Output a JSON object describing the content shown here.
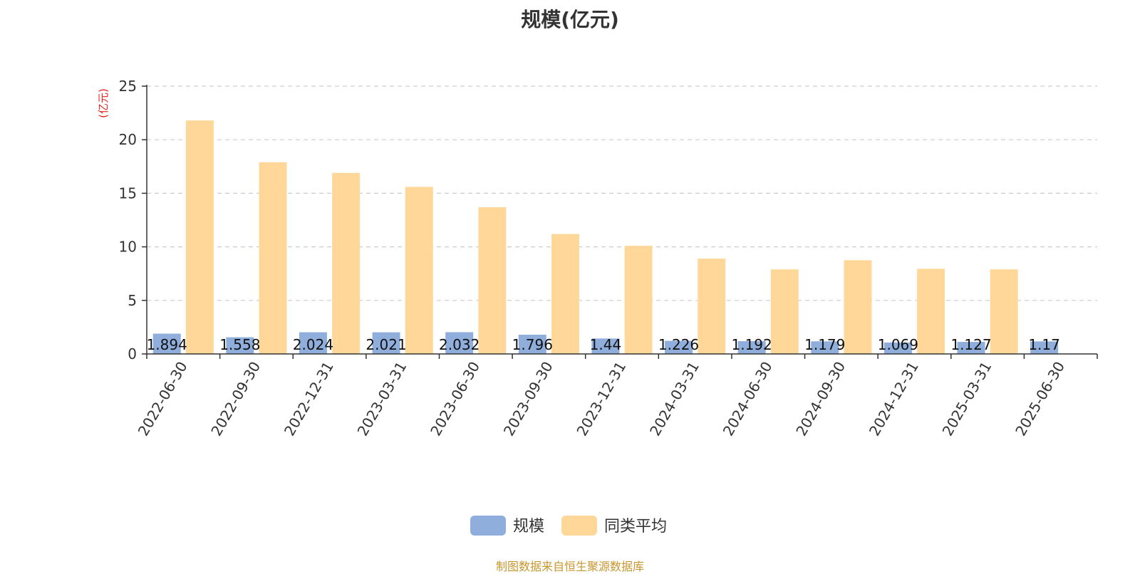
{
  "title": "规模(亿元)",
  "source_note": "制图数据来自恒生聚源数据库",
  "colors": {
    "scale": "#8faedc",
    "peer": "#ffd899",
    "unit": "#e8231f",
    "source": "#c8962e",
    "grid": "#cccccc"
  },
  "chart_data": {
    "type": "bar",
    "title": "规模(亿元)",
    "ylabel": "(亿元)",
    "ylim": [
      0,
      25
    ],
    "yticks": [
      0,
      5,
      10,
      15,
      20,
      25
    ],
    "grid": true,
    "legend_position": "bottom",
    "categories": [
      "2022-06-30",
      "2022-09-30",
      "2022-12-31",
      "2023-03-31",
      "2023-06-30",
      "2023-09-30",
      "2023-12-31",
      "2024-03-31",
      "2024-06-30",
      "2024-09-30",
      "2024-12-31",
      "2025-03-31",
      "2025-06-30"
    ],
    "series": [
      {
        "name": "规模",
        "values": [
          1.894,
          1.558,
          2.024,
          2.021,
          2.032,
          1.796,
          1.44,
          1.226,
          1.192,
          1.179,
          1.069,
          1.127,
          1.17
        ],
        "labels": [
          "1.894",
          "1.558",
          "2.024",
          "2.021",
          "2.032",
          "1.796",
          "1.44",
          "1.226",
          "1.192",
          "1.179",
          "1.069",
          "1.127",
          "1.17"
        ]
      },
      {
        "name": "同类平均",
        "values": [
          21.8,
          17.9,
          16.9,
          15.6,
          13.7,
          11.2,
          10.1,
          8.9,
          7.9,
          8.75,
          7.95,
          7.9,
          null
        ]
      }
    ]
  }
}
